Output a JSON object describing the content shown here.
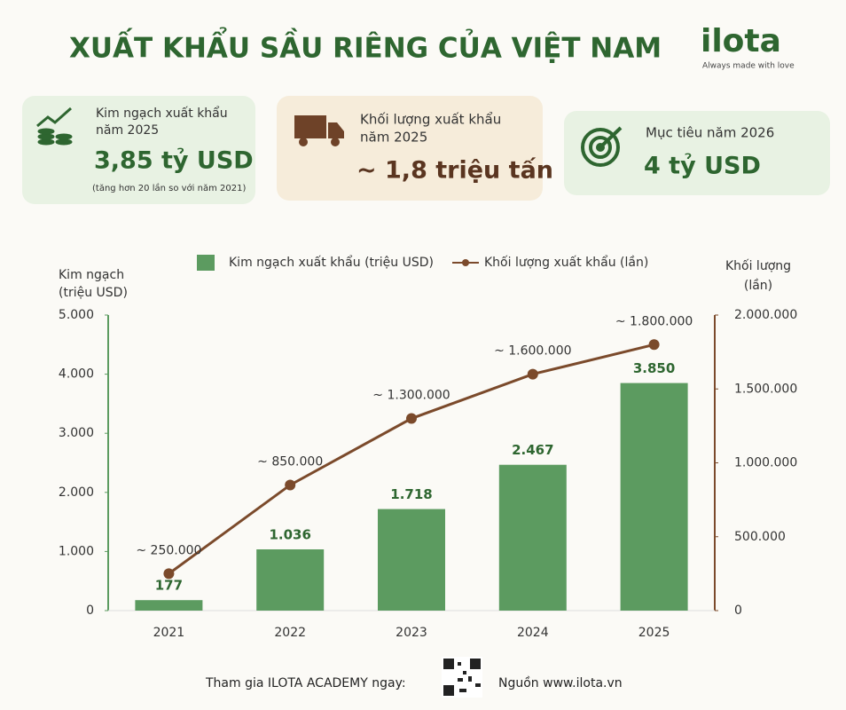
{
  "header": {
    "title": "XUẤT KHẨU SẦU RIÊNG CỦA VIỆT NAM",
    "logo": "ilota",
    "tagline": "Always made with love"
  },
  "cards": [
    {
      "label": [
        "Kim ngạch xuất khẩu",
        "năm 2025"
      ],
      "value": "3,85 tỷ USD",
      "note": "(tăng hơn 20 lần so với năm 2021)"
    },
    {
      "label": [
        "Khối lượng xuất khẩu",
        "năm 2025"
      ],
      "value": "~ 1,8 triệu tấn"
    },
    {
      "label": [
        "Mục tiêu năm 2026"
      ],
      "value": "4 tỷ USD"
    }
  ],
  "chart_data": {
    "type": "bar",
    "ylabel": [
      "Kim ngạch",
      "(triệu USD)"
    ],
    "y2label": [
      "Khối lượng",
      "(lần)"
    ],
    "categories": [
      "2021",
      "2022",
      "2023",
      "2024",
      "2025"
    ],
    "series": [
      {
        "name": "Kim ngạch xuất khẩu (triệu USD)",
        "type": "bar",
        "color": "#5c9b60",
        "values": [
          177,
          1036,
          1718,
          2467,
          3850
        ],
        "value_labels": [
          "177",
          "1.036",
          "1.718",
          "2.467",
          "3.850"
        ]
      },
      {
        "name": "Khối lượng xuất khẩu (lần)",
        "type": "line",
        "axis": "y2",
        "color": "#7b4a2b",
        "values": [
          250000,
          850000,
          1300000,
          1600000,
          1800000
        ],
        "value_labels": [
          "~ 250.000",
          "~ 850.000",
          "~ 1.300.000",
          "~ 1.600.000",
          "~ 1.800.000"
        ]
      }
    ],
    "ylim": [
      0,
      5000
    ],
    "yticks": [
      0,
      {
        "value": 1000,
        "label": "1.000"
      },
      {
        "value": 2000,
        "label": "2.000"
      },
      {
        "value": 3000,
        "label": "3.000"
      },
      {
        "value": 4000,
        "label": "4.000"
      },
      {
        "value": 5000,
        "label": "5.000"
      }
    ],
    "y2lim": [
      0,
      2000000
    ],
    "y2ticks": [
      0,
      {
        "value": 500000,
        "label": "500.000"
      },
      {
        "value": 1000000,
        "label": "1.000.000"
      },
      {
        "value": 1500000,
        "label": "1.500.000"
      },
      {
        "value": 2000000,
        "label": "2.000.000"
      }
    ]
  },
  "footer": {
    "cta": "Tham gia ILOTA ACADEMY ngay:",
    "source": "Nguồn www.ilota.vn"
  }
}
